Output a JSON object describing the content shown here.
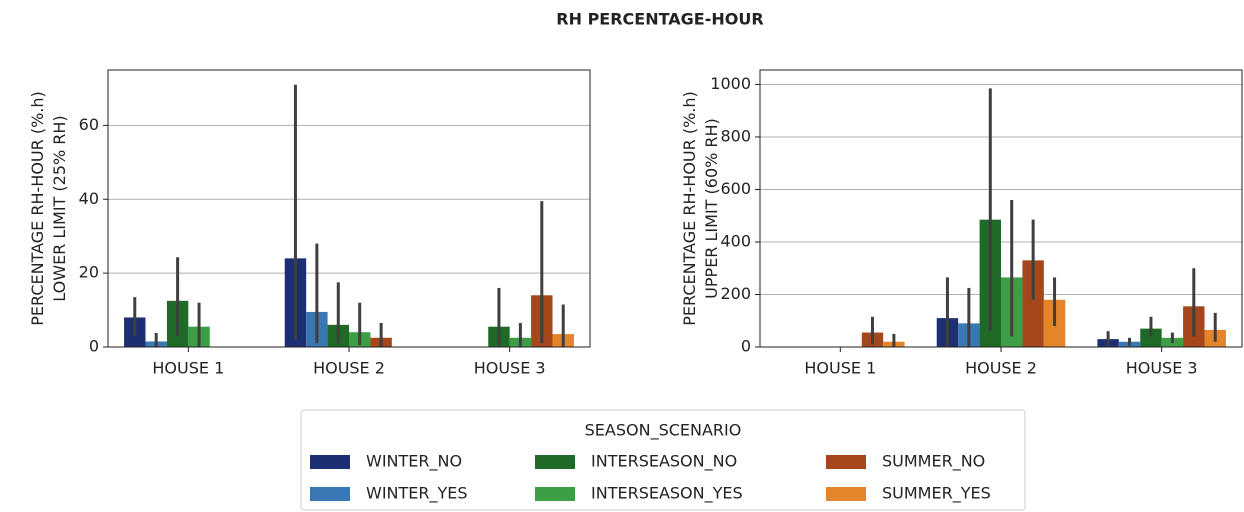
{
  "title": "RH PERCENTAGE-HOUR",
  "legend": {
    "title": "SEASON_SCENARIO"
  },
  "chart_data": [
    {
      "type": "bar",
      "ylabel": [
        "PERCENTAGE RH-HOUR (%.h)",
        "LOWER LIMIT (25% RH)"
      ],
      "categories": [
        "HOUSE 1",
        "HOUSE 2",
        "HOUSE 3"
      ],
      "ylim": [
        0,
        75
      ],
      "yticks": [
        0,
        20,
        40,
        60
      ],
      "grid": true,
      "series": [
        {
          "name": "WINTER_NO",
          "color": "#1b2f72",
          "values": [
            8,
            24,
            null
          ],
          "ci_low": [
            3,
            2,
            null
          ],
          "ci_high": [
            13.5,
            71,
            null
          ]
        },
        {
          "name": "WINTER_YES",
          "color": "#3978b4",
          "values": [
            1.5,
            9.5,
            null
          ],
          "ci_low": [
            0,
            1,
            null
          ],
          "ci_high": [
            3.8,
            28,
            null
          ]
        },
        {
          "name": "INTERSEASON_NO",
          "color": "#1f6a27",
          "values": [
            12.5,
            6,
            5.5
          ],
          "ci_low": [
            3,
            1,
            0
          ],
          "ci_high": [
            24.3,
            17.5,
            16
          ]
        },
        {
          "name": "INTERSEASON_YES",
          "color": "#3d9f45",
          "values": [
            5.5,
            4,
            2.5
          ],
          "ci_low": [
            0,
            0.5,
            0
          ],
          "ci_high": [
            12,
            12,
            6.5
          ]
        },
        {
          "name": "SUMMER_NO",
          "color": "#a5461b",
          "values": [
            null,
            2.5,
            14
          ],
          "ci_low": [
            null,
            0,
            1
          ],
          "ci_high": [
            null,
            6.5,
            39.5
          ]
        },
        {
          "name": "SUMMER_YES",
          "color": "#e5852b",
          "values": [
            null,
            null,
            3.5
          ],
          "ci_low": [
            null,
            null,
            0
          ],
          "ci_high": [
            null,
            null,
            11.5
          ]
        }
      ]
    },
    {
      "type": "bar",
      "ylabel": [
        "PERCENTAGE RH-HOUR (%.h)",
        "UPPER LIMIT (60% RH)"
      ],
      "categories": [
        "HOUSE 1",
        "HOUSE 2",
        "HOUSE 3"
      ],
      "ylim": [
        0,
        1055
      ],
      "yticks": [
        0,
        200,
        400,
        600,
        800,
        1000
      ],
      "grid": true,
      "series": [
        {
          "name": "WINTER_NO",
          "color": "#1b2f72",
          "values": [
            null,
            110,
            30
          ],
          "ci_low": [
            null,
            0,
            5
          ],
          "ci_high": [
            null,
            265,
            60
          ]
        },
        {
          "name": "WINTER_YES",
          "color": "#3978b4",
          "values": [
            null,
            90,
            20
          ],
          "ci_low": [
            null,
            0,
            5
          ],
          "ci_high": [
            null,
            225,
            35
          ]
        },
        {
          "name": "INTERSEASON_NO",
          "color": "#1f6a27",
          "values": [
            null,
            485,
            70
          ],
          "ci_low": [
            null,
            60,
            40
          ],
          "ci_high": [
            null,
            985,
            115
          ]
        },
        {
          "name": "INTERSEASON_YES",
          "color": "#3d9f45",
          "values": [
            null,
            265,
            35
          ],
          "ci_low": [
            null,
            40,
            15
          ],
          "ci_high": [
            null,
            560,
            55
          ]
        },
        {
          "name": "SUMMER_NO",
          "color": "#a5461b",
          "values": [
            55,
            330,
            155
          ],
          "ci_low": [
            10,
            180,
            40
          ],
          "ci_high": [
            115,
            485,
            300
          ]
        },
        {
          "name": "SUMMER_YES",
          "color": "#e5852b",
          "values": [
            20,
            180,
            65
          ],
          "ci_low": [
            0,
            80,
            20
          ],
          "ci_high": [
            50,
            265,
            130
          ]
        }
      ]
    }
  ]
}
